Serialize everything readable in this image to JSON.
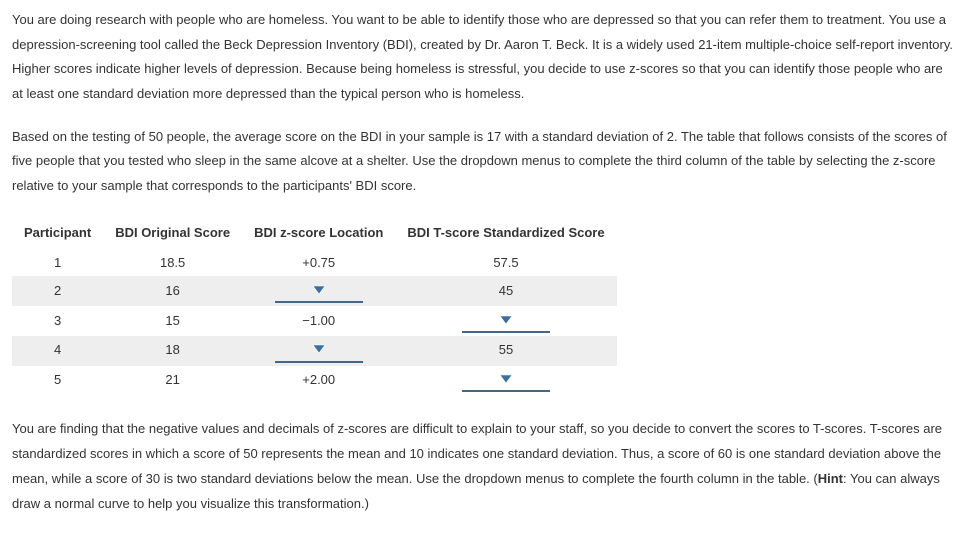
{
  "paragraph1": "You are doing research with people who are homeless. You want to be able to identify those who are depressed so that you can refer them to treatment. You use a depression-screening tool called the Beck Depression Inventory (BDI), created by Dr. Aaron T. Beck. It is a widely used 21-item multiple-choice self-report inventory. Higher scores indicate higher levels of depression. Because being homeless is stressful, you decide to use z-scores so that you can identify those people who are at least one standard deviation more depressed than the typical person who is homeless.",
  "paragraph2": "Based on the testing of 50 people, the average score on the BDI in your sample is 17 with a standard deviation of 2. The table that follows consists of the scores of five people that you tested who sleep in the same alcove at a shelter. Use the dropdown menus to complete the third column of the table by selecting the z-score relative to your sample that corresponds to the participants' BDI score.",
  "paragraph3_parts": {
    "before_hint": "You are finding that the negative values and decimals of z-scores are difficult to explain to your staff, so you decide to convert the scores to T-scores. T-scores are standardized scores in which a score of 50 represents the mean and 10 indicates one standard deviation. Thus, a score of 60 is one standard deviation above the mean, while a score of 30 is two standard deviations below the mean. Use the dropdown menus to complete the fourth column in the table. (",
    "hint_label": "Hint",
    "after_hint": ": You can always draw a normal curve to help you visualize this transformation.)"
  },
  "table": {
    "headers": {
      "participant": "Participant",
      "original": "BDI Original Score",
      "zscore": "BDI z-score Location",
      "tscore": "BDI T-score Standardized Score"
    },
    "rows": [
      {
        "p": "1",
        "orig": "18.5",
        "z_type": "value",
        "z_val": "+0.75",
        "t_type": "value",
        "t_val": "57.5"
      },
      {
        "p": "2",
        "orig": "16",
        "z_type": "dropdown",
        "z_val": "",
        "t_type": "value",
        "t_val": "45"
      },
      {
        "p": "3",
        "orig": "15",
        "z_type": "value",
        "z_val": "−1.00",
        "t_type": "dropdown",
        "t_val": ""
      },
      {
        "p": "4",
        "orig": "18",
        "z_type": "dropdown",
        "z_val": "",
        "t_type": "value",
        "t_val": "55"
      },
      {
        "p": "5",
        "orig": "21",
        "z_type": "value",
        "z_val": "+2.00",
        "t_type": "dropdown",
        "t_val": ""
      }
    ]
  },
  "style": {
    "dropdown_arrow_fill": "#3b6fa0",
    "dropdown_underline": "#446688",
    "alt_row_bg": "#eeeeee"
  }
}
